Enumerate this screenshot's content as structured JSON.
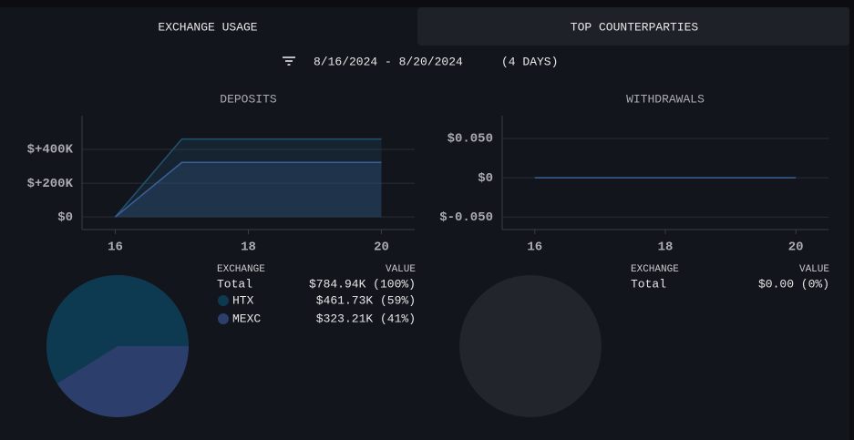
{
  "tabs": [
    "EXCHANGE USAGE",
    "TOP COUNTERPARTIES"
  ],
  "date_range": "8/16/2024 - 8/20/2024",
  "duration": "(4 DAYS)",
  "chart_data": [
    {
      "type": "area",
      "title": "DEPOSITS",
      "x": [
        16,
        17,
        18,
        19,
        20
      ],
      "xlim": [
        15.5,
        20.5
      ],
      "xticks": [
        16,
        18,
        20
      ],
      "ylim": [
        -75000,
        600000
      ],
      "yticks": [
        {
          "value": 0,
          "label": "$0"
        },
        {
          "value": 200000,
          "label": "$+200K"
        },
        {
          "value": 400000,
          "label": "$+400K"
        }
      ],
      "grid": true,
      "series": [
        {
          "color": "#1f5470",
          "values": [
            0,
            461730,
            461730,
            461730,
            461730
          ]
        },
        {
          "color": "#3b6199",
          "values": [
            0,
            323210,
            323210,
            323210,
            323210
          ]
        }
      ]
    },
    {
      "type": "pie",
      "legend_header": [
        "EXCHANGE",
        "VALUE"
      ],
      "total_label": "Total",
      "total": 784940,
      "total_value_label": "$784.94K (100%)",
      "categories": [
        "HTX",
        "MEXC"
      ],
      "values": [
        461730,
        323210
      ],
      "value_labels": [
        "$461.73K (59%)",
        "$323.21K (41%)"
      ],
      "colors": [
        "#0e3a51",
        "#2c3e6b"
      ]
    },
    {
      "type": "area",
      "title": "WITHDRAWALS",
      "x": [
        16,
        17,
        18,
        19,
        20
      ],
      "xlim": [
        15.5,
        20.5
      ],
      "xticks": [
        16,
        18,
        20
      ],
      "ylim": [
        -0.066,
        0.079
      ],
      "yticks": [
        {
          "value": -0.05,
          "label": "$-0.050"
        },
        {
          "value": 0,
          "label": "$0"
        },
        {
          "value": 0.05,
          "label": "$0.050"
        }
      ],
      "grid": true,
      "series": [
        {
          "color": "#3b6199",
          "values": [
            0,
            0,
            0,
            0,
            0
          ]
        }
      ]
    },
    {
      "type": "pie",
      "legend_header": [
        "EXCHANGE",
        "VALUE"
      ],
      "total_label": "Total",
      "total": 0,
      "total_value_label": "$0.00 (0%)",
      "categories": [],
      "values": [],
      "value_labels": [],
      "colors": []
    }
  ]
}
